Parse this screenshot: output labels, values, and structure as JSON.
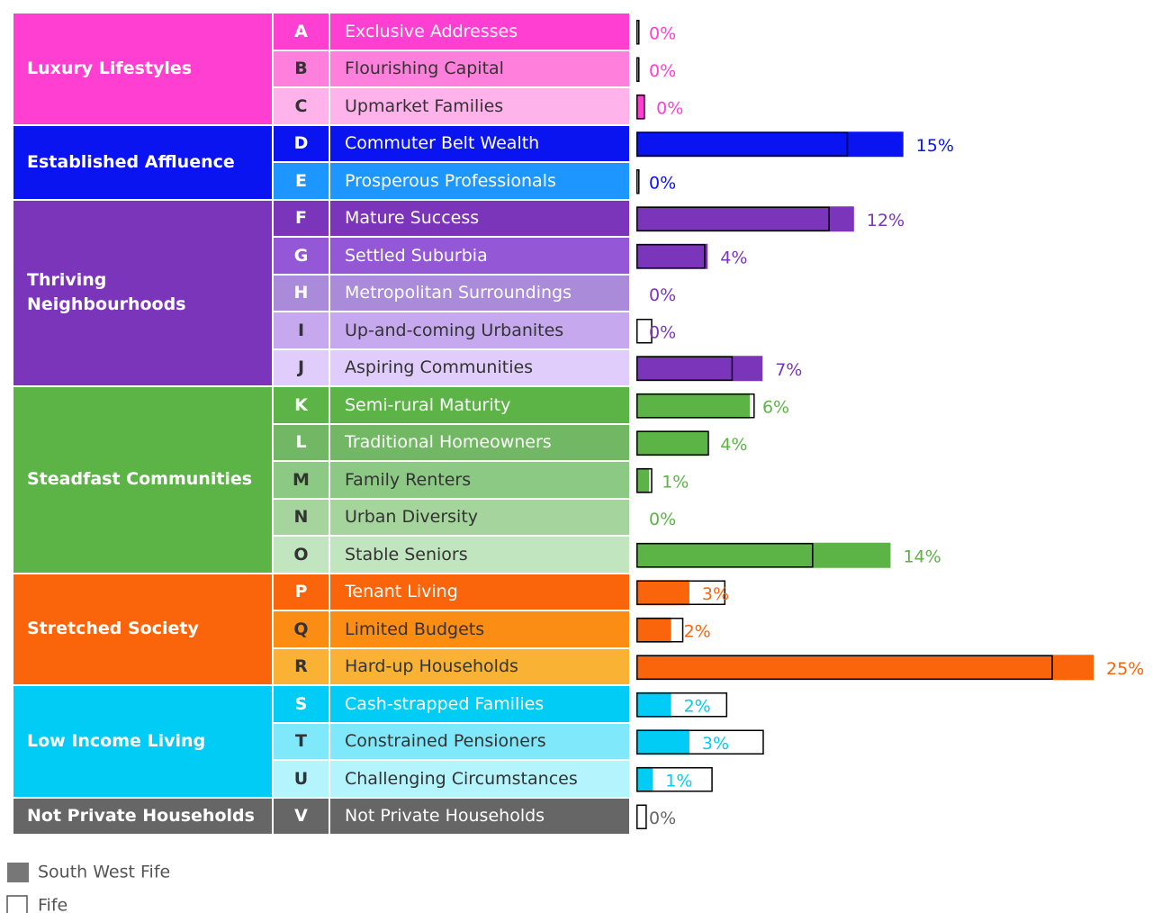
{
  "chart_data": {
    "type": "bar",
    "groups": [
      {
        "name": "Luxury Lifestyles",
        "color": "#ff3fd2",
        "rows": [
          {
            "letter": "A",
            "name": "Exclusive Addresses",
            "color": "#ff3fd2"
          },
          {
            "letter": "B",
            "name": "Flourishing Capital",
            "color": "#ff7fdc"
          },
          {
            "letter": "C",
            "name": "Upmarket Families",
            "color": "#ffb3ea"
          }
        ]
      },
      {
        "name": "Established Affluence",
        "color": "#0a14f0",
        "rows": [
          {
            "letter": "D",
            "name": "Commuter Belt Wealth",
            "color": "#0a14f0"
          },
          {
            "letter": "E",
            "name": "Prosperous Professionals",
            "color": "#1e96ff"
          }
        ]
      },
      {
        "name": "Thriving\nNeighbourhoods",
        "color": "#7b35bb",
        "rows": [
          {
            "letter": "F",
            "name": "Mature Success",
            "color": "#7b35bb"
          },
          {
            "letter": "G",
            "name": "Settled Suburbia",
            "color": "#9457d6"
          },
          {
            "letter": "H",
            "name": "Metropolitan Surroundings",
            "color": "#a98bd9"
          },
          {
            "letter": "I",
            "name": "Up-and-coming Urbanites",
            "color": "#c6a8ee"
          },
          {
            "letter": "J",
            "name": "Aspiring Communities",
            "color": "#e0cdfb"
          }
        ]
      },
      {
        "name": "Steadfast Communities",
        "color": "#5cb346",
        "rows": [
          {
            "letter": "K",
            "name": "Semi-rural Maturity",
            "color": "#5cb346"
          },
          {
            "letter": "L",
            "name": "Traditional Homeowners",
            "color": "#72b864"
          },
          {
            "letter": "M",
            "name": "Family Renters",
            "color": "#8cc984"
          },
          {
            "letter": "N",
            "name": "Urban Diversity",
            "color": "#a5d49c"
          },
          {
            "letter": "O",
            "name": "Stable Seniors",
            "color": "#c1e5bf"
          }
        ]
      },
      {
        "name": "Stretched Society",
        "color": "#fa640a",
        "rows": [
          {
            "letter": "P",
            "name": "Tenant Living",
            "color": "#fa640a"
          },
          {
            "letter": "Q",
            "name": "Limited Budgets",
            "color": "#fb8c14"
          },
          {
            "letter": "R",
            "name": "Hard-up Households",
            "color": "#f9b233"
          }
        ]
      },
      {
        "name": "Low Income Living",
        "color": "#00ccf5",
        "rows": [
          {
            "letter": "S",
            "name": "Cash-strapped Families",
            "color": "#00ccf5"
          },
          {
            "letter": "T",
            "name": "Constrained Pensioners",
            "color": "#7fe8fb"
          },
          {
            "letter": "U",
            "name": "Challenging Circumstances",
            "color": "#b4f4fd"
          }
        ]
      },
      {
        "name": "Not Private Households",
        "color": "#666666",
        "rows": [
          {
            "letter": "V",
            "name": "Not Private Households",
            "color": "#666666"
          }
        ]
      }
    ],
    "series": [
      {
        "name": "South West Fife",
        "color": "#777777",
        "values": [
          0,
          0,
          0.4,
          14.6,
          0,
          11.9,
          3.9,
          0,
          0,
          6.9,
          6.2,
          3.9,
          0.7,
          0,
          13.9,
          2.9,
          1.9,
          25,
          1.9,
          2.9,
          0.9,
          0
        ],
        "value_labels": [
          "0%",
          "0%",
          "0%",
          "15%",
          "0%",
          "12%",
          "4%",
          "0%",
          "0%",
          "7%",
          "6%",
          "4%",
          "1%",
          "0%",
          "14%",
          "3%",
          "2%",
          "25%",
          "2%",
          "3%",
          "1%",
          "0%"
        ]
      },
      {
        "name": "Fife",
        "color": "#000000",
        "values": [
          0.1,
          0.1,
          0.4,
          11.5,
          0.1,
          10.5,
          3.7,
          0,
          0.8,
          5.2,
          6.4,
          3.9,
          0.8,
          0,
          9.6,
          4.8,
          2.5,
          22.7,
          4.9,
          6.9,
          4.1,
          0.5
        ]
      }
    ],
    "xlim": [
      0,
      25
    ]
  }
}
